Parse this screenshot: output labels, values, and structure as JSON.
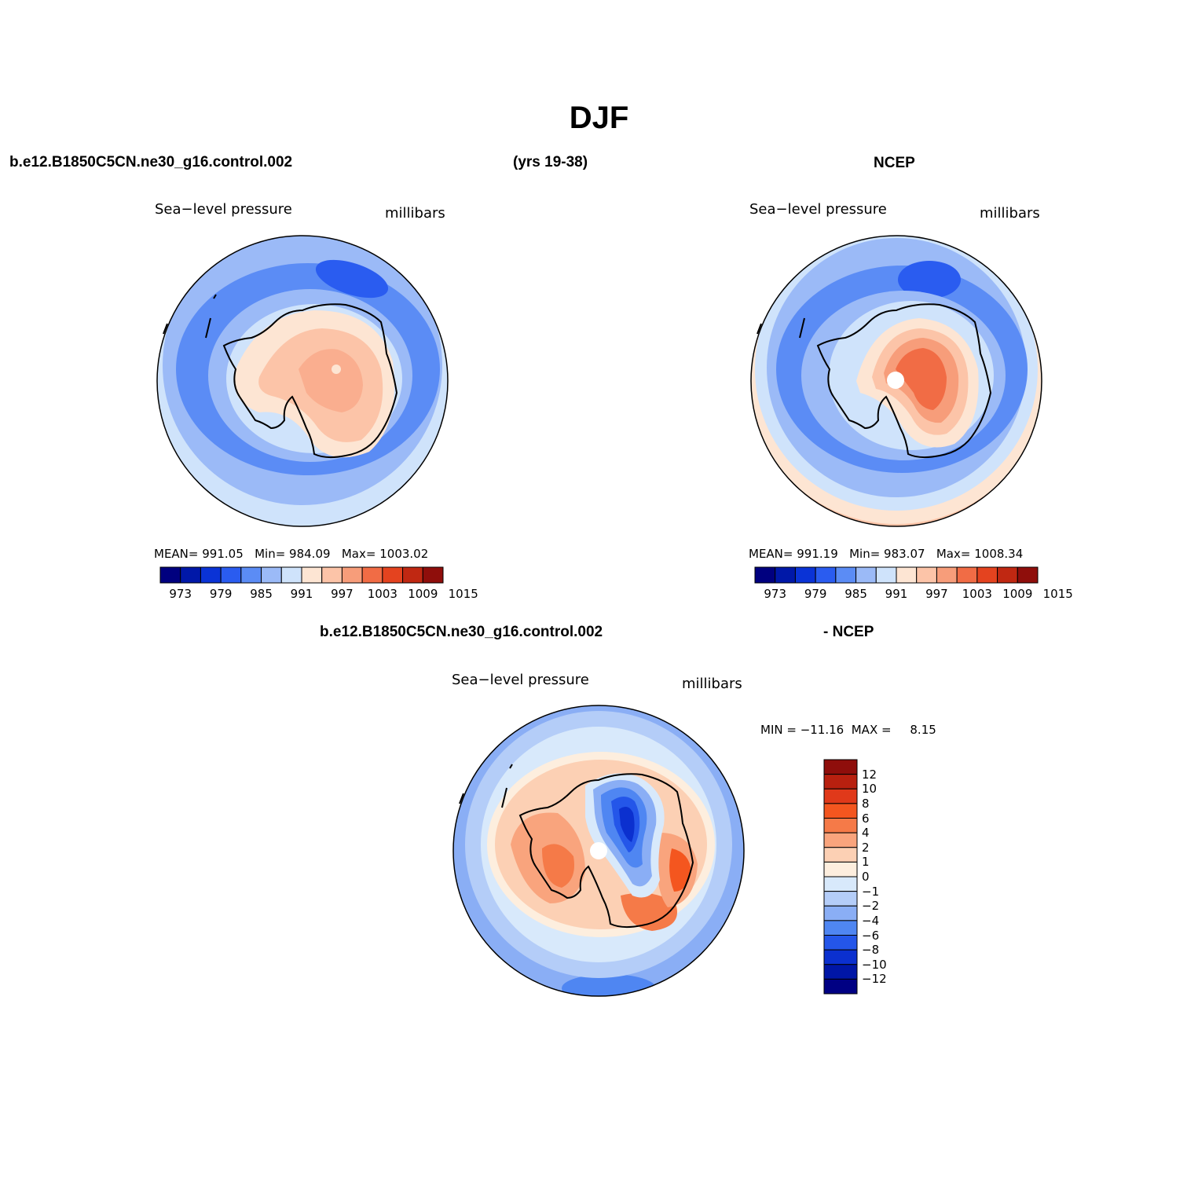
{
  "title": "DJF",
  "header": {
    "case_name": "b.e12.B1850C5CN.ne30_g16.control.002",
    "years": "(yrs 19-38)",
    "obs_name": "NCEP",
    "diff_case_name": "b.e12.B1850C5CN.ne30_g16.control.002",
    "diff_suffix": "- NCEP"
  },
  "panels": {
    "model": {
      "variable": "Sea−level pressure",
      "units": "millibars",
      "stats": {
        "mean_label": "MEAN=",
        "mean": "991.05",
        "min_label": "Min=",
        "min": "984.09",
        "max_label": "Max=",
        "max": "1003.02"
      }
    },
    "obs": {
      "variable": "Sea−level pressure",
      "units": "millibars",
      "stats": {
        "mean_label": "MEAN=",
        "mean": "991.19",
        "min_label": "Min=",
        "min": "983.07",
        "max_label": "Max=",
        "max": "1008.34"
      }
    },
    "diff": {
      "variable": "Sea−level pressure",
      "units": "millibars",
      "minmax_text": "MIN = −11.16  MAX =     8.15"
    }
  },
  "colorbar_abs": {
    "colors": [
      "#00007f",
      "#0018a8",
      "#0a33d6",
      "#2a5cf0",
      "#5b8cf5",
      "#9bbaf7",
      "#cfe3fb",
      "#fde5d3",
      "#fcc4a8",
      "#f79d7a",
      "#f16c45",
      "#e4431f",
      "#c02812",
      "#8f0e0b"
    ],
    "labels": [
      "973",
      "979",
      "985",
      "991",
      "997",
      "1003",
      "1009",
      "1015"
    ]
  },
  "colorbar_diff": {
    "colors": [
      "#8f0e0b",
      "#b8200f",
      "#e0391a",
      "#f4561f",
      "#f57a48",
      "#f9a47d",
      "#fcd0b4",
      "#fdeede",
      "#d8e9fb",
      "#b4cdf8",
      "#8aaef5",
      "#4f86f2",
      "#2456e9",
      "#0b30cf",
      "#0016a6",
      "#000083"
    ],
    "labels": [
      "12",
      "10",
      "8",
      "6",
      "4",
      "2",
      "1",
      "0",
      "−1",
      "−2",
      "−4",
      "−6",
      "−8",
      "−10",
      "−12"
    ]
  }
}
